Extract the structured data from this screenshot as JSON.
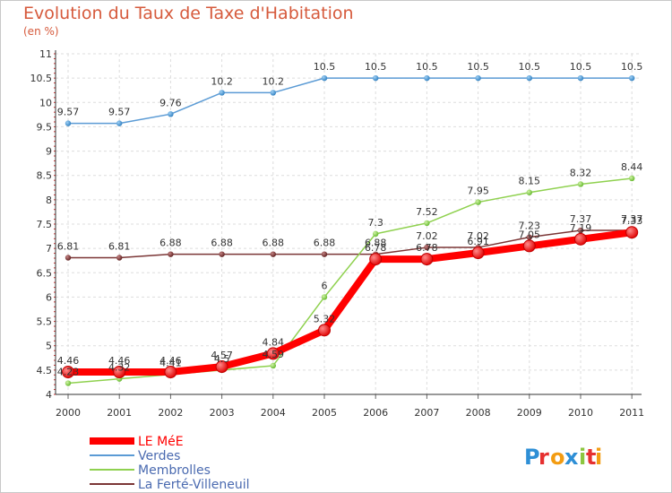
{
  "chart_data": {
    "type": "line",
    "title": "Evolution du Taux de Taxe d'Habitation",
    "subtitle": "(en %)",
    "x": [
      "2000",
      "2001",
      "2002",
      "2003",
      "2004",
      "2005",
      "2006",
      "2007",
      "2008",
      "2009",
      "2010",
      "2011"
    ],
    "ylim": [
      4,
      11
    ],
    "yticks": [
      "4",
      "4.5",
      "5",
      "5.5",
      "6",
      "6.5",
      "7",
      "7.5",
      "8",
      "8.5",
      "9",
      "9.5",
      "10",
      "10.5",
      "11"
    ],
    "grid": true,
    "legend_position": "bottom-left",
    "series": [
      {
        "name": "LE MéE",
        "color": "#ff0000",
        "values": [
          4.46,
          4.46,
          4.46,
          4.57,
          4.84,
          5.32,
          6.78,
          6.78,
          6.91,
          7.05,
          7.19,
          7.33
        ],
        "labels": [
          "4.46",
          "4.46",
          "4.46",
          "4.57",
          "4.84",
          "5.32",
          "6.78",
          "6.78",
          "6.91",
          "7.05",
          "7.19",
          "7.33"
        ]
      },
      {
        "name": "Verdes",
        "color": "#5b9bd5",
        "values": [
          9.57,
          9.57,
          9.76,
          10.2,
          10.2,
          10.5,
          10.5,
          10.5,
          10.5,
          10.5,
          10.5,
          10.5
        ],
        "labels": [
          "9.57",
          "9.57",
          "9.76",
          "10.2",
          "10.2",
          "10.5",
          "10.5",
          "10.5",
          "10.5",
          "10.5",
          "10.5",
          "10.5"
        ]
      },
      {
        "name": "Membrolles",
        "color": "#8fd14f",
        "values": [
          4.23,
          4.32,
          4.41,
          4.5,
          4.59,
          6,
          7.3,
          7.52,
          7.95,
          8.15,
          8.32,
          8.44
        ],
        "labels": [
          "4.23",
          "4.32",
          "4.41",
          "4.5",
          "4.59",
          "6",
          "7.3",
          "7.52",
          "7.95",
          "8.15",
          "8.32",
          "8.44"
        ]
      },
      {
        "name": "La Ferté-Villeneuil",
        "color": "#7b3636",
        "values": [
          6.81,
          6.81,
          6.88,
          6.88,
          6.88,
          6.88,
          6.88,
          7.02,
          7.02,
          7.23,
          7.37,
          7.37
        ],
        "labels": [
          "6.81",
          "6.81",
          "6.88",
          "6.88",
          "6.88",
          "6.88",
          "6.88",
          "7.02",
          "7.02",
          "7.23",
          "7.37",
          "7.37"
        ]
      }
    ]
  },
  "branding": {
    "logo_text": "Proxiti"
  }
}
